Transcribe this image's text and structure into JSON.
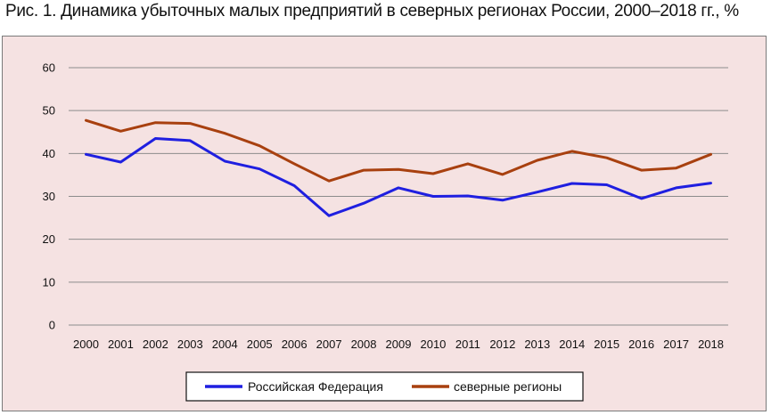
{
  "figure": {
    "title": "Рис. 1. Динамика убыточных малых предприятий в северных регионах России, 2000–2018 гг., %"
  },
  "colors": {
    "background": "#f5e2e2",
    "grid": "#8c8c8c",
    "series_1": "#1f1fe0",
    "series_2": "#a8400f"
  },
  "chart_data": {
    "type": "line",
    "title": "",
    "xlabel": "",
    "ylabel": "",
    "ylim": [
      0,
      60
    ],
    "yticks": [
      "0",
      "10",
      "20",
      "30",
      "40",
      "50",
      "60"
    ],
    "grid": "horizontal",
    "legend": "bottom-center",
    "categories": [
      "2000",
      "2001",
      "2002",
      "2003",
      "2004",
      "2005",
      "2006",
      "2007",
      "2008",
      "2009",
      "2010",
      "2011",
      "2012",
      "2013",
      "2014",
      "2015",
      "2016",
      "2017",
      "2018"
    ],
    "series": [
      {
        "name": "Российская Федерация",
        "color": "#1f1fe0",
        "values": [
          39.8,
          38.0,
          43.5,
          43.0,
          38.2,
          36.4,
          32.5,
          25.5,
          28.4,
          32.0,
          30.0,
          30.1,
          29.1,
          31.0,
          33.0,
          32.7,
          29.5,
          32.0,
          33.1
        ]
      },
      {
        "name": "северные регионы",
        "color": "#a8400f",
        "values": [
          47.7,
          45.2,
          47.2,
          47.0,
          44.7,
          41.8,
          37.6,
          33.6,
          36.1,
          36.3,
          35.3,
          37.6,
          35.1,
          38.4,
          40.5,
          39.0,
          36.1,
          36.6,
          39.8
        ]
      }
    ]
  }
}
